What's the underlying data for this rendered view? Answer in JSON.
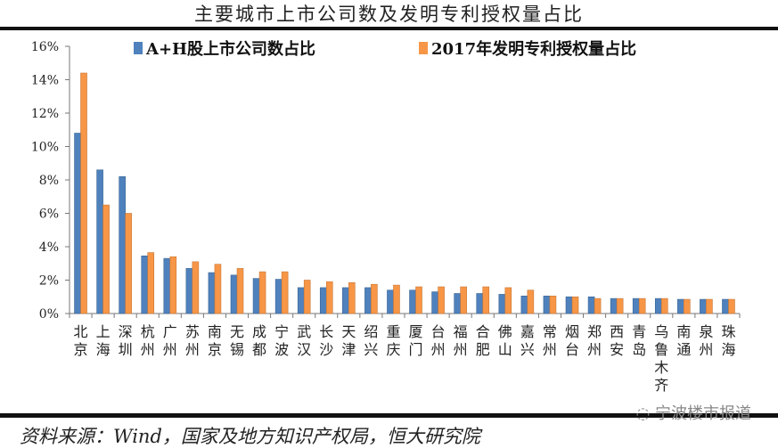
{
  "chart_data": {
    "type": "bar",
    "title": "主要城市上市公司数及发明专利授权量占比",
    "categories": [
      "北京",
      "上海",
      "深圳",
      "杭州",
      "广州",
      "苏州",
      "南京",
      "无锡",
      "成都",
      "宁波",
      "武汉",
      "长沙",
      "天津",
      "绍兴",
      "重庆",
      "厦门",
      "台州",
      "福州",
      "合肥",
      "佛山",
      "嘉兴",
      "常州",
      "烟台",
      "郑州",
      "西安",
      "青岛",
      "乌鲁木齐",
      "南通",
      "泉州",
      "珠海"
    ],
    "series": [
      {
        "name": "A+H股上市公司数占比",
        "color": "#4f81bd",
        "values": [
          10.8,
          8.6,
          8.2,
          3.45,
          3.3,
          2.7,
          2.45,
          2.3,
          2.1,
          2.05,
          1.55,
          1.55,
          1.55,
          1.55,
          1.4,
          1.4,
          1.3,
          1.2,
          1.2,
          1.15,
          1.05,
          1.05,
          1.0,
          1.0,
          0.9,
          0.9,
          0.9,
          0.85,
          0.85,
          0.85
        ]
      },
      {
        "name": "2017年发明专利授权量占比",
        "color": "#f79646",
        "values": [
          14.4,
          6.5,
          6.0,
          3.65,
          3.4,
          3.1,
          2.95,
          2.7,
          2.5,
          2.5,
          2.0,
          1.9,
          1.85,
          1.75,
          1.7,
          1.6,
          1.6,
          1.6,
          1.6,
          1.55,
          1.4,
          1.05,
          1.0,
          0.9,
          0.9,
          0.9,
          0.9,
          0.85,
          0.85,
          0.85
        ]
      }
    ],
    "ylim": [
      0,
      16
    ],
    "yticks": [
      "0%",
      "2%",
      "4%",
      "6%",
      "8%",
      "10%",
      "12%",
      "14%",
      "16%"
    ],
    "legend": "top",
    "grid": false
  },
  "source": "资料来源：Wind，国家及地方知识产权局，恒大研究院",
  "watermark": "宁波楼市报道"
}
